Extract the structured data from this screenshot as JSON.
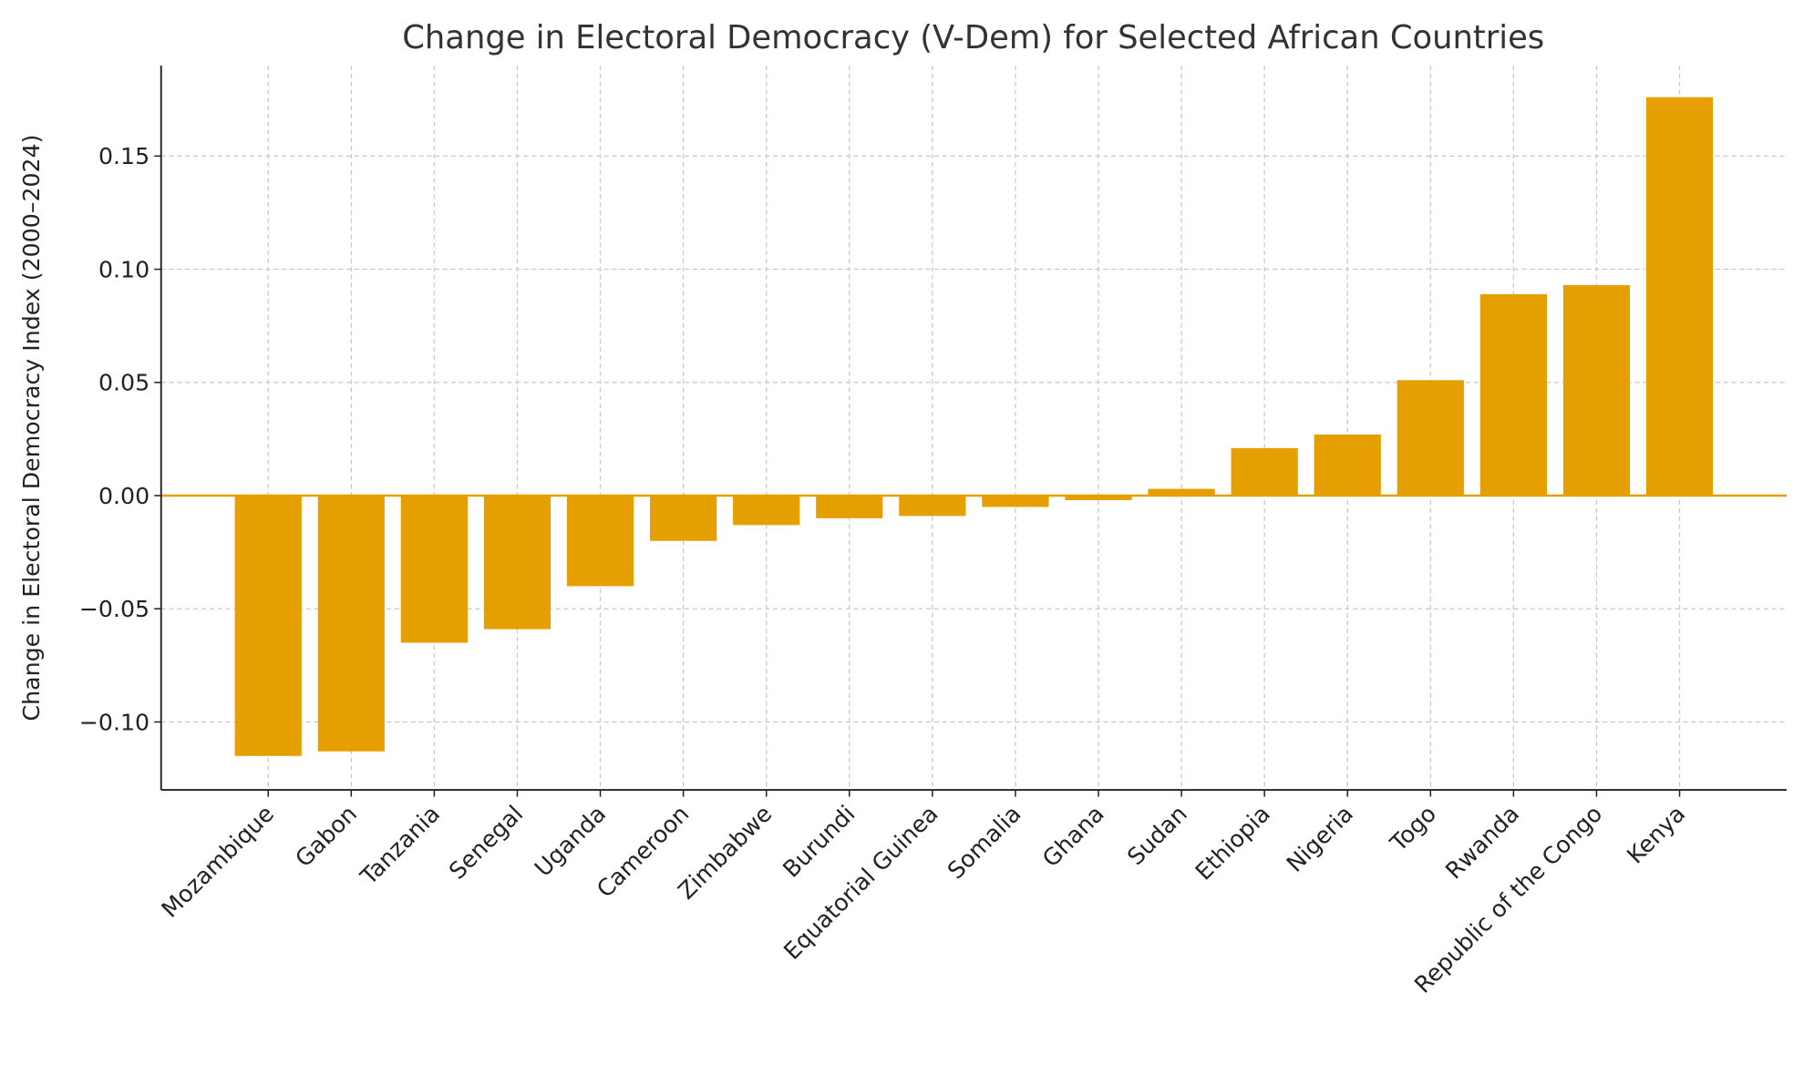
{
  "chart_data": {
    "type": "bar",
    "title": "Change in Electoral Democracy (V-Dem) for Selected African Countries",
    "xlabel": "",
    "ylabel": "Change in Electoral Democracy Index (2000–2024)",
    "categories": [
      "Mozambique",
      "Gabon",
      "Tanzania",
      "Senegal",
      "Uganda",
      "Cameroon",
      "Zimbabwe",
      "Burundi",
      "Equatorial Guinea",
      "Somalia",
      "Ghana",
      "Sudan",
      "Ethiopia",
      "Nigeria",
      "Togo",
      "Rwanda",
      "Republic of the Congo",
      "Kenya"
    ],
    "values": [
      -0.115,
      -0.113,
      -0.065,
      -0.059,
      -0.04,
      -0.02,
      -0.013,
      -0.01,
      -0.009,
      -0.005,
      -0.002,
      0.003,
      0.021,
      0.027,
      0.051,
      0.089,
      0.093,
      0.176
    ],
    "ylim": [
      -0.13,
      0.19
    ],
    "yticks": [
      -0.1,
      -0.05,
      0.0,
      0.05,
      0.1,
      0.15
    ],
    "ytick_labels": [
      "−0.10",
      "−0.05",
      "0.00",
      "0.05",
      "0.10",
      "0.15"
    ],
    "grid": true,
    "bar_color": "#E69F00",
    "zero_line_color": "#E69F00"
  }
}
